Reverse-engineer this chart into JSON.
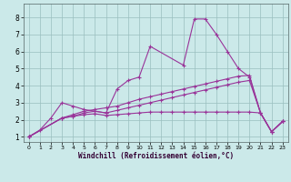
{
  "xlabel": "Windchill (Refroidissement éolien,°C)",
  "bg_color": "#cbe9e9",
  "line_color": "#993399",
  "grid_color": "#9abfbf",
  "xlim": [
    -0.5,
    23.5
  ],
  "ylim": [
    0.7,
    8.8
  ],
  "yticks": [
    1,
    2,
    3,
    4,
    5,
    6,
    7,
    8
  ],
  "xticks": [
    0,
    1,
    2,
    3,
    4,
    5,
    6,
    7,
    8,
    9,
    10,
    11,
    12,
    13,
    14,
    15,
    16,
    17,
    18,
    19,
    20,
    21,
    22,
    23
  ],
  "series1": [
    [
      0,
      1.0
    ],
    [
      1,
      1.4
    ],
    [
      2,
      2.1
    ],
    [
      3,
      3.0
    ],
    [
      4,
      2.8
    ],
    [
      5,
      2.6
    ],
    [
      6,
      2.5
    ],
    [
      7,
      2.4
    ],
    [
      8,
      3.8
    ],
    [
      9,
      4.3
    ],
    [
      10,
      4.5
    ],
    [
      11,
      6.3
    ],
    [
      14,
      5.2
    ],
    [
      15,
      7.9
    ],
    [
      16,
      7.9
    ],
    [
      17,
      7.0
    ],
    [
      18,
      6.0
    ],
    [
      19,
      5.0
    ],
    [
      20,
      4.5
    ],
    [
      21,
      2.4
    ],
    [
      22,
      1.3
    ],
    [
      23,
      1.9
    ]
  ],
  "series2": [
    [
      0,
      1.0
    ],
    [
      3,
      2.1
    ],
    [
      4,
      2.3
    ],
    [
      5,
      2.5
    ],
    [
      6,
      2.6
    ],
    [
      7,
      2.7
    ],
    [
      8,
      2.8
    ],
    [
      9,
      3.0
    ],
    [
      10,
      3.2
    ],
    [
      11,
      3.35
    ],
    [
      12,
      3.5
    ],
    [
      13,
      3.65
    ],
    [
      14,
      3.8
    ],
    [
      15,
      3.95
    ],
    [
      16,
      4.1
    ],
    [
      17,
      4.25
    ],
    [
      18,
      4.4
    ],
    [
      19,
      4.55
    ],
    [
      20,
      4.6
    ],
    [
      21,
      2.4
    ],
    [
      22,
      1.3
    ],
    [
      23,
      1.9
    ]
  ],
  "series3": [
    [
      0,
      1.0
    ],
    [
      3,
      2.1
    ],
    [
      4,
      2.2
    ],
    [
      5,
      2.4
    ],
    [
      6,
      2.5
    ],
    [
      7,
      2.4
    ],
    [
      8,
      2.55
    ],
    [
      9,
      2.7
    ],
    [
      10,
      2.85
    ],
    [
      11,
      3.0
    ],
    [
      12,
      3.15
    ],
    [
      13,
      3.3
    ],
    [
      14,
      3.45
    ],
    [
      15,
      3.6
    ],
    [
      16,
      3.75
    ],
    [
      17,
      3.9
    ],
    [
      18,
      4.05
    ],
    [
      19,
      4.2
    ],
    [
      20,
      4.3
    ],
    [
      21,
      2.4
    ],
    [
      22,
      1.3
    ],
    [
      23,
      1.9
    ]
  ],
  "series4": [
    [
      0,
      1.0
    ],
    [
      3,
      2.1
    ],
    [
      4,
      2.2
    ],
    [
      5,
      2.3
    ],
    [
      6,
      2.35
    ],
    [
      7,
      2.25
    ],
    [
      8,
      2.3
    ],
    [
      9,
      2.35
    ],
    [
      10,
      2.4
    ],
    [
      11,
      2.45
    ],
    [
      12,
      2.45
    ],
    [
      13,
      2.45
    ],
    [
      14,
      2.45
    ],
    [
      15,
      2.45
    ],
    [
      16,
      2.45
    ],
    [
      17,
      2.45
    ],
    [
      18,
      2.45
    ],
    [
      19,
      2.45
    ],
    [
      20,
      2.45
    ],
    [
      21,
      2.4
    ],
    [
      22,
      1.3
    ],
    [
      23,
      1.9
    ]
  ]
}
